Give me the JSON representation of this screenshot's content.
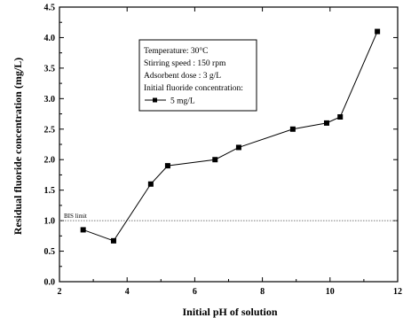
{
  "chart_data": {
    "type": "line",
    "title": "",
    "xlabel": "Initial pH of solution",
    "ylabel": "Residual fluoride concentration (mg/L)",
    "xlim": [
      2,
      12
    ],
    "ylim": [
      0.0,
      4.5
    ],
    "xticks": [
      "2",
      "4",
      "6",
      "8",
      "10",
      "12"
    ],
    "yticks": [
      "0.0",
      "0.5",
      "1.0",
      "1.5",
      "2.0",
      "2.5",
      "3.0",
      "3.5",
      "4.0",
      "4.5"
    ],
    "series": [
      {
        "name": "5 mg/L",
        "x": [
          2.7,
          3.6,
          4.7,
          5.2,
          6.6,
          7.3,
          8.9,
          9.9,
          10.3,
          11.4
        ],
        "y": [
          0.85,
          0.67,
          1.6,
          1.9,
          2.0,
          2.2,
          2.5,
          2.6,
          2.7,
          4.1
        ]
      }
    ],
    "reference_line": {
      "label": "BIS limit",
      "y": 1.0
    },
    "annotation_box": {
      "lines": [
        "Temperature: 30°C",
        "Stirring speed : 150 rpm",
        "Adsorbent dose : 3 g/L",
        "Initial fluoride concentration:"
      ]
    },
    "legend": {
      "placement": "top-left inside annotation box"
    },
    "grid": false,
    "colors": {
      "line": "#000000",
      "reference": "#777777",
      "background": "#ffffff"
    }
  }
}
